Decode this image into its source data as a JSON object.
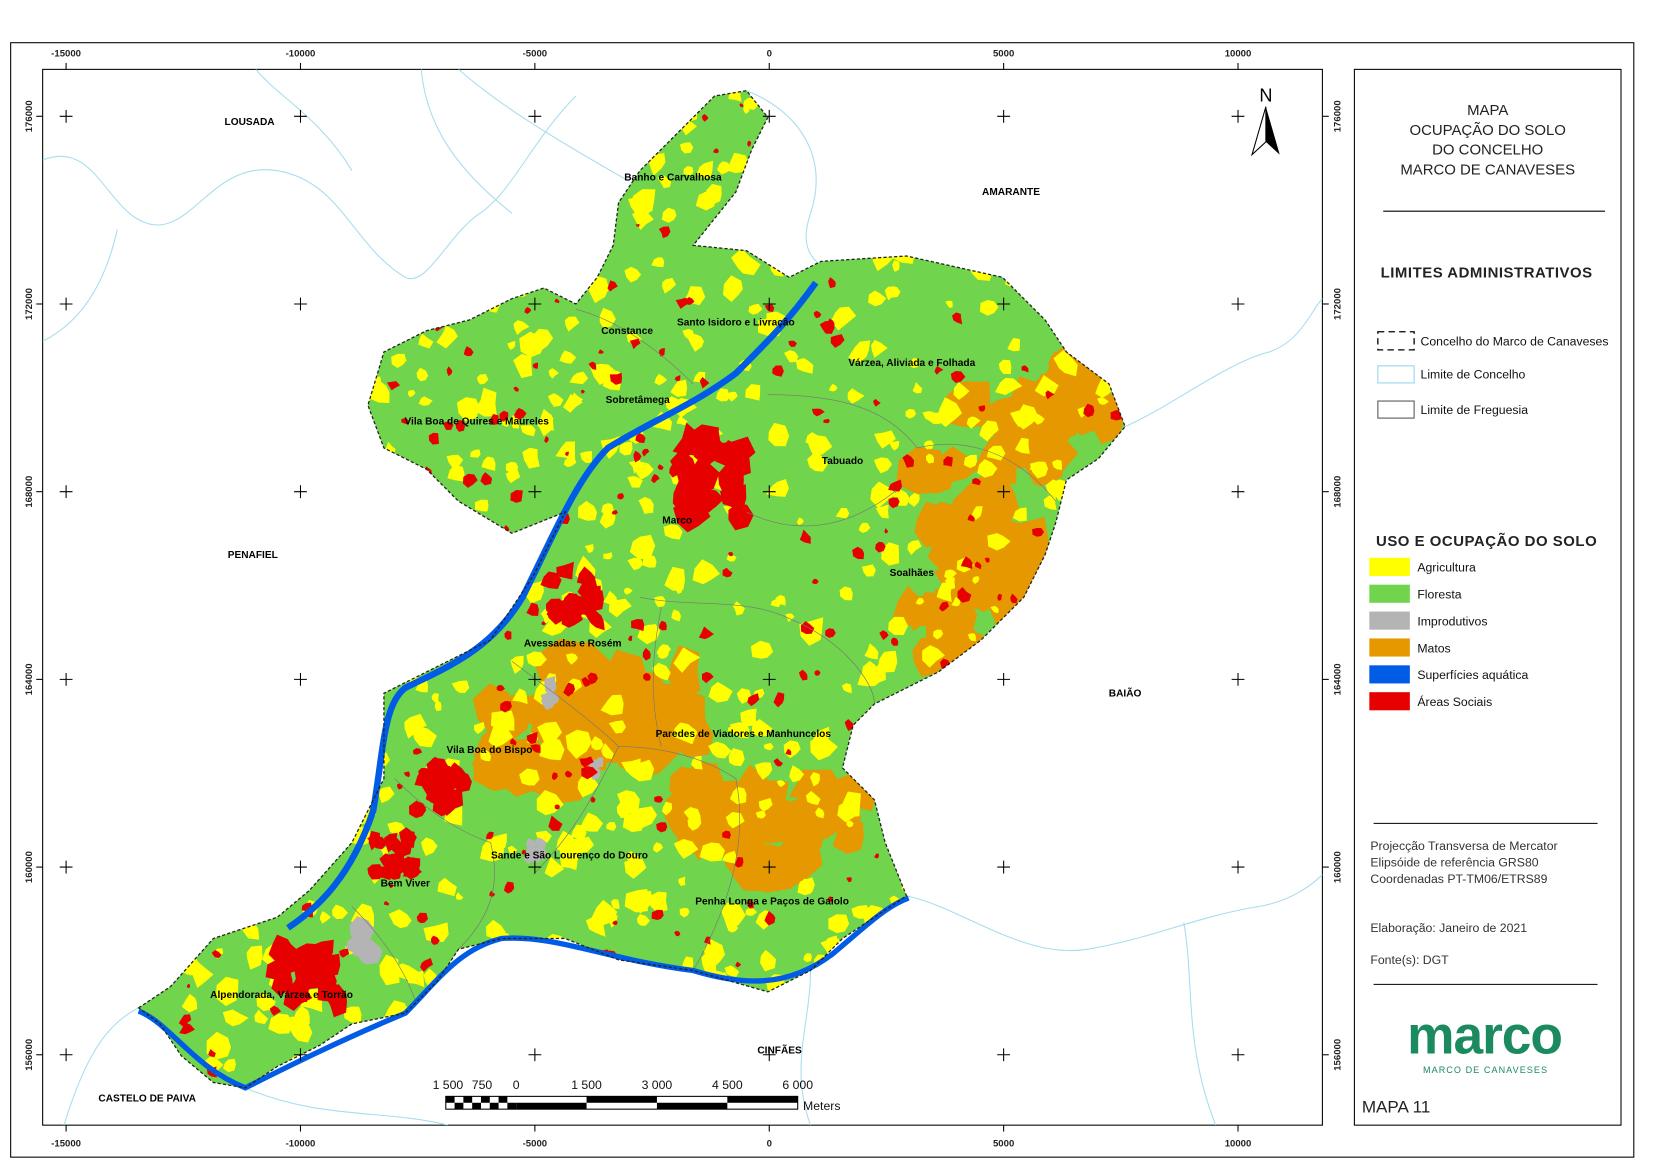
{
  "title": [
    "MAPA",
    "OCUPAÇÃO DO SOLO",
    "DO CONCELHO",
    "MARCO DE CANAVESES"
  ],
  "frame": {
    "xlim": [
      -15500,
      11800
    ],
    "ylim": [
      154500,
      177000
    ],
    "xticks": [
      -15000,
      -10000,
      -5000,
      0,
      5000,
      10000
    ],
    "yticks": [
      176000,
      172000,
      168000,
      164000,
      160000,
      156000
    ]
  },
  "north": "N",
  "neighbours": [
    "LOUSADA",
    "AMARANTE",
    "PENAFIEL",
    "BAIÃO",
    "CINFÃES",
    "CASTELO DE PAIVA"
  ],
  "parishes": [
    "Banho e Carvalhosa",
    "Santo Isidoro e Livração",
    "Constance",
    "Várzea, Aliviada e Folhada",
    "Sobretâmega",
    "Vila Boa de Quires e Maureles",
    "Tabuado",
    "Marco",
    "Soalhães",
    "Avessadas e Rosém",
    "Paredes de Viadores e Manhuncelos",
    "Vila Boa do Bispo",
    "Sande e São Lourenço do Douro",
    "Bem Viver",
    "Penha Longa e Paços de Gaiolo",
    "Alpendorada, Várzea e Torrão"
  ],
  "limits": {
    "title": "LIMITES ADMINISTRATIVOS",
    "items": [
      "Concelho do Marco de Canaveses",
      "Limite de Concelho",
      "Limite de Freguesia"
    ]
  },
  "land_use": {
    "title": "USO E OCUPAÇÃO DO SOLO",
    "items": [
      {
        "name": "Agricultura",
        "color": "#ffff00"
      },
      {
        "name": "Floresta",
        "color": "#70d44c"
      },
      {
        "name": "Improdutivos",
        "color": "#b4b4b4"
      },
      {
        "name": "Matos",
        "color": "#e69800"
      },
      {
        "name": "Superfícies aquática",
        "color": "#005ce6"
      },
      {
        "name": "Áreas Sociais",
        "color": "#e60000"
      }
    ]
  },
  "notes": [
    "Projecção Transversa de Mercator",
    "Elipsóide de referência GRS80",
    "Coordenadas PT-TM06/ETRS89"
  ],
  "credits": [
    "Elaboração: Janeiro de 2021",
    "Fonte(s): DGT"
  ],
  "logo": {
    "name": "marco",
    "subtitle": "MARCO DE CANAVESES"
  },
  "scale_bar": {
    "labels": [
      "1 500",
      "750",
      "0",
      "1 500",
      "3 000",
      "4 500",
      "6 000"
    ],
    "unit": "Meters"
  },
  "map_number": "MAPA 11"
}
